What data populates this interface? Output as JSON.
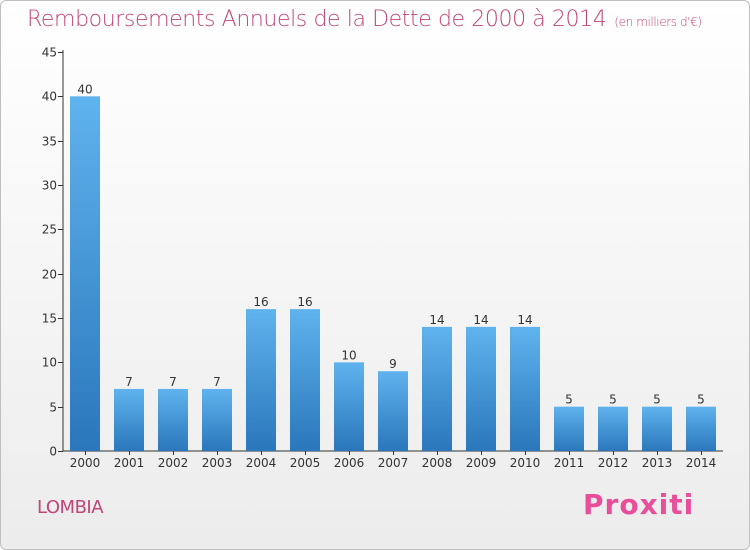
{
  "title": "Remboursements Annuels de la Dette de 2000 à 2014",
  "unit_label": "(en milliers d'€)",
  "place_name": "LOMBIA",
  "logo_text": "Proxiti",
  "colors": {
    "title": "#c0457a",
    "bar_top": "#5fb3ee",
    "bar_bottom": "#2a77bb",
    "axis": "#333333",
    "grid": "#cfcfcf"
  },
  "chart_data": {
    "type": "bar",
    "categories": [
      "2000",
      "2001",
      "2002",
      "2003",
      "2004",
      "2005",
      "2006",
      "2007",
      "2008",
      "2009",
      "2010",
      "2011",
      "2012",
      "2013",
      "2014"
    ],
    "values": [
      40,
      7,
      7,
      7,
      16,
      16,
      10,
      9,
      14,
      14,
      14,
      5,
      5,
      5,
      5
    ],
    "y_ticks": [
      0,
      5,
      10,
      15,
      20,
      25,
      30,
      35,
      40,
      45
    ],
    "ylim": [
      0,
      45
    ],
    "grid": false,
    "data_labels": true
  }
}
